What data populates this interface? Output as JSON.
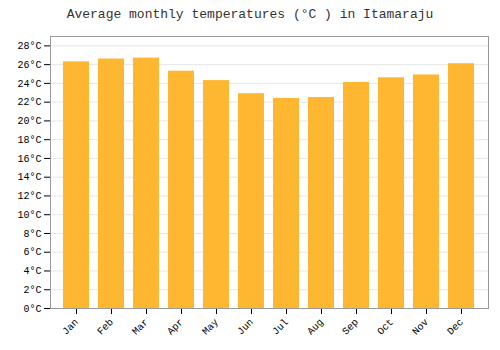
{
  "chart_data": {
    "type": "bar",
    "title": "Average monthly temperatures (°C ) in Itamaraju",
    "categories": [
      "Jan",
      "Feb",
      "Mar",
      "Apr",
      "May",
      "Jun",
      "Jul",
      "Aug",
      "Sep",
      "Oct",
      "Nov",
      "Dec"
    ],
    "values": [
      26.3,
      26.6,
      26.7,
      25.3,
      24.3,
      22.9,
      22.4,
      22.5,
      24.1,
      24.6,
      24.9,
      26.1
    ],
    "color": "#FFB732",
    "ylim": [
      0,
      29
    ],
    "yticks": [
      {
        "value": 0,
        "label": "0°C"
      },
      {
        "value": 2,
        "label": "2°C"
      },
      {
        "value": 4,
        "label": "4°C"
      },
      {
        "value": 6,
        "label": "6°C"
      },
      {
        "value": 8,
        "label": "8°C"
      },
      {
        "value": 10,
        "label": "10°C"
      },
      {
        "value": 12,
        "label": "12°C"
      },
      {
        "value": 14,
        "label": "14°C"
      },
      {
        "value": 16,
        "label": "16°C"
      },
      {
        "value": 18,
        "label": "18°C"
      },
      {
        "value": 20,
        "label": "20°C"
      },
      {
        "value": 22,
        "label": "22°C"
      },
      {
        "value": 24,
        "label": "24°C"
      },
      {
        "value": 26,
        "label": "26°C"
      },
      {
        "value": 28,
        "label": "28°C"
      }
    ],
    "grid": true
  }
}
